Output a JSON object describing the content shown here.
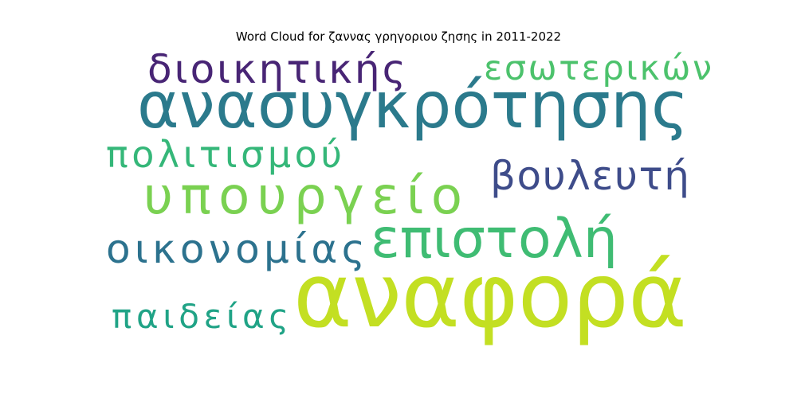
{
  "chart_data": {
    "type": "wordcloud",
    "title": "Word Cloud for ζαννας γρηγοριου ζησης in 2011-2022",
    "words": [
      {
        "text": "αναφορά",
        "weight": 1.0,
        "color": "#c3df22"
      },
      {
        "text": "ανασυγκρότησης",
        "weight": 0.78,
        "color": "#2b7a8c"
      },
      {
        "text": "υπουργείο",
        "weight": 0.62,
        "color": "#7ad151"
      },
      {
        "text": "επιστολή",
        "weight": 0.55,
        "color": "#3fbc73"
      },
      {
        "text": "διοικητικής",
        "weight": 0.44,
        "color": "#482575"
      },
      {
        "text": "βουλευτή",
        "weight": 0.44,
        "color": "#3e4c8a"
      },
      {
        "text": "οικονομίας",
        "weight": 0.43,
        "color": "#2c728e"
      },
      {
        "text": "πολιτισμού",
        "weight": 0.39,
        "color": "#35b779"
      },
      {
        "text": "εσωτερικών",
        "weight": 0.37,
        "color": "#4cc26c"
      },
      {
        "text": "παιδείας",
        "weight": 0.36,
        "color": "#20a386"
      }
    ]
  }
}
